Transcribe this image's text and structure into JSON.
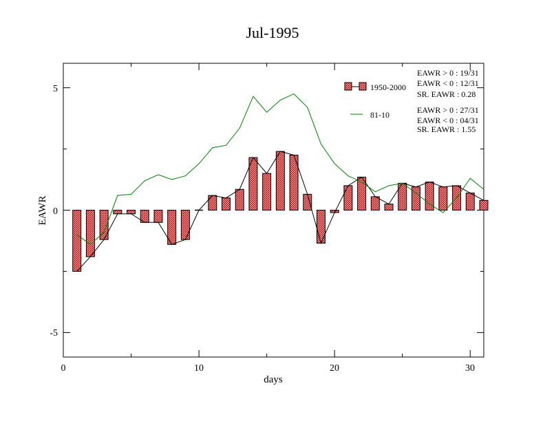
{
  "chart_data": {
    "type": "bar",
    "title": "Jul-1995",
    "xlabel": "days",
    "ylabel": "EAWR",
    "xlim": [
      0,
      31
    ],
    "ylim": [
      -6,
      6
    ],
    "x_ticks": [
      "0",
      "10",
      "20",
      "30"
    ],
    "y_ticks": [
      "-5",
      "0",
      "5"
    ],
    "grid": false,
    "legend_position": "top-right",
    "days": [
      1,
      2,
      3,
      4,
      5,
      6,
      7,
      8,
      9,
      10,
      11,
      12,
      13,
      14,
      15,
      16,
      17,
      18,
      19,
      20,
      21,
      22,
      23,
      24,
      25,
      26,
      27,
      28,
      29,
      30,
      31
    ],
    "series": [
      {
        "name": "1950-2000",
        "style": "bars with connecting line",
        "color": "#f08080",
        "line_color": "#000000",
        "values": [
          -2.5,
          -1.9,
          -1.2,
          -0.15,
          -0.15,
          -0.5,
          -0.5,
          -1.4,
          -1.2,
          0.0,
          0.6,
          0.5,
          0.85,
          2.15,
          1.5,
          2.4,
          2.25,
          0.65,
          -1.35,
          -0.1,
          1.0,
          1.35,
          0.55,
          0.25,
          1.1,
          0.95,
          1.15,
          0.95,
          1.0,
          0.7,
          0.4
        ]
      },
      {
        "name": "81-10",
        "style": "line",
        "color": "#008000",
        "values": [
          -1.0,
          -1.4,
          -0.9,
          0.6,
          0.65,
          1.2,
          1.45,
          1.25,
          1.4,
          1.9,
          2.55,
          2.65,
          3.35,
          4.65,
          4.0,
          4.5,
          4.75,
          4.2,
          2.7,
          1.9,
          1.4,
          1.15,
          0.75,
          1.0,
          1.1,
          0.7,
          0.25,
          -0.1,
          0.5,
          1.3,
          0.85
        ]
      }
    ],
    "stats": {
      "period_1950_2000": [
        "EAWR > 0 : 19/31",
        "EAWR < 0 : 12/31",
        "SR. EAWR :  0.28"
      ],
      "period_81_10": [
        "EAWR > 0 : 27/31",
        "EAWR < 0 : 04/31",
        "SR. EAWR :  1.55"
      ]
    }
  }
}
